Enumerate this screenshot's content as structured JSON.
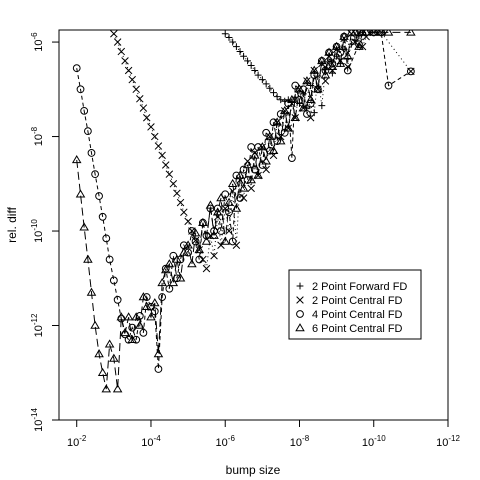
{
  "chart_data": {
    "type": "line",
    "title": "",
    "xlabel": "bump size",
    "ylabel": "rel. diff",
    "x_scale": "log",
    "y_scale": "log",
    "x_reversed": true,
    "xlim": [
      0.03,
      1e-12
    ],
    "ylim": [
      1e-14,
      1.8e-06
    ],
    "grid": false,
    "legend_position": "right-center",
    "x_ticks": [
      {
        "value": 0.01,
        "base": "10",
        "exp": "-2"
      },
      {
        "value": 0.0001,
        "base": "10",
        "exp": "-4"
      },
      {
        "value": 1e-06,
        "base": "10",
        "exp": "-6"
      },
      {
        "value": 1e-08,
        "base": "10",
        "exp": "-8"
      },
      {
        "value": 1e-10,
        "base": "10",
        "exp": "-10"
      },
      {
        "value": 1e-12,
        "base": "10",
        "exp": "-12"
      }
    ],
    "y_ticks": [
      {
        "value": 1e-06,
        "base": "10",
        "exp": "-6"
      },
      {
        "value": 1e-08,
        "base": "10",
        "exp": "-8"
      },
      {
        "value": 1e-10,
        "base": "10",
        "exp": "-10"
      },
      {
        "value": 1e-12,
        "base": "10",
        "exp": "-12"
      },
      {
        "value": 1e-14,
        "base": "10",
        "exp": "-14"
      }
    ],
    "series": [
      {
        "name": "2 Point Forward FD",
        "marker": "plus",
        "line": "dotted",
        "points": [
          [
            1e-06,
            1.5e-06
          ],
          [
            7.9e-07,
            1.25e-06
          ],
          [
            6.3e-07,
            1e-06
          ],
          [
            5e-07,
            8e-07
          ],
          [
            4e-07,
            6.3e-07
          ],
          [
            3.2e-07,
            5e-07
          ],
          [
            2.5e-07,
            4e-07
          ],
          [
            2e-07,
            3.2e-07
          ],
          [
            1.6e-07,
            2.5e-07
          ],
          [
            1.3e-07,
            2e-07
          ],
          [
            1e-07,
            1.6e-07
          ],
          [
            7.9e-08,
            1.3e-07
          ],
          [
            6.3e-08,
            1.05e-07
          ],
          [
            5e-08,
            8.5e-08
          ],
          [
            4e-08,
            7e-08
          ],
          [
            3.2e-08,
            6e-08
          ],
          [
            2.5e-08,
            5.6e-08
          ],
          [
            2e-08,
            6e-08
          ],
          [
            1.6e-08,
            5.5e-08
          ],
          [
            1.3e-08,
            6.8e-08
          ],
          [
            1e-08,
            5e-08
          ],
          [
            7.9e-09,
            8e-08
          ],
          [
            6.3e-09,
            4e-08
          ],
          [
            5e-09,
            1.2e-07
          ],
          [
            4e-09,
            3.2e-08
          ],
          [
            3.2e-09,
            1.9e-07
          ],
          [
            2.5e-09,
            4.5e-08
          ],
          [
            2e-09,
            2.6e-07
          ],
          [
            1.6e-09,
            3.8e-07
          ],
          [
            1.3e-09,
            2.2e-07
          ],
          [
            1e-09,
            5e-07
          ],
          [
            7.9e-10,
            3.5e-07
          ],
          [
            6.3e-10,
            7e-07
          ],
          [
            5e-10,
            4.5e-07
          ],
          [
            4e-10,
            9e-07
          ],
          [
            3.2e-10,
            1.1e-06
          ],
          [
            2.5e-10,
            1.35e-06
          ],
          [
            2e-10,
            1.6e-06
          ]
        ]
      },
      {
        "name": "2 Point Central FD",
        "marker": "cross",
        "line": "dotted",
        "points": [
          [
            0.001,
            1.5e-06
          ],
          [
            0.00079,
            1e-06
          ],
          [
            0.00063,
            6.3e-07
          ],
          [
            0.0005,
            4e-07
          ],
          [
            0.0004,
            2.5e-07
          ],
          [
            0.00032,
            1.6e-07
          ],
          [
            0.00025,
            1e-07
          ],
          [
            0.0002,
            6.3e-08
          ],
          [
            0.00016,
            4e-08
          ],
          [
            0.00013,
            2.5e-08
          ],
          [
            0.0001,
            1.6e-08
          ],
          [
            7.9e-05,
            1e-08
          ],
          [
            6.3e-05,
            6.3e-09
          ],
          [
            5e-05,
            4e-09
          ],
          [
            4e-05,
            2.5e-09
          ],
          [
            3.2e-05,
            1.6e-09
          ],
          [
            2.5e-05,
            1e-09
          ],
          [
            2e-05,
            6.3e-10
          ],
          [
            1.6e-05,
            4e-10
          ],
          [
            1.3e-05,
            2.5e-10
          ],
          [
            1e-05,
            1.6e-10
          ],
          [
            7.9e-06,
            1e-10
          ],
          [
            6.3e-06,
            6.3e-11
          ],
          [
            5e-06,
            4e-11
          ],
          [
            4e-06,
            2.5e-11
          ],
          [
            3.2e-06,
            1.6e-11
          ],
          [
            2.5e-06,
            8e-11
          ],
          [
            2e-06,
            3e-11
          ],
          [
            1.6e-06,
            2e-10
          ],
          [
            1.3e-06,
            5e-11
          ],
          [
            1e-06,
            3e-10
          ],
          [
            7.9e-07,
            1e-10
          ],
          [
            6.3e-07,
            7e-10
          ],
          [
            5e-07,
            5e-11
          ],
          [
            4e-07,
            1.2e-09
          ],
          [
            3.2e-07,
            5e-10
          ],
          [
            2.5e-07,
            3e-09
          ],
          [
            2e-07,
            8e-10
          ],
          [
            1.6e-07,
            4.5e-09
          ],
          [
            1.3e-07,
            1.5e-09
          ],
          [
            1e-07,
            6e-09
          ],
          [
            7.9e-08,
            2e-09
          ],
          [
            6.3e-08,
            1e-08
          ],
          [
            5e-08,
            4e-09
          ],
          [
            4e-08,
            2e-08
          ],
          [
            3.2e-08,
            1e-08
          ],
          [
            2.5e-08,
            3.5e-08
          ],
          [
            2e-08,
            1.5e-08
          ],
          [
            1.6e-08,
            5e-08
          ],
          [
            1.3e-08,
            2.5e-08
          ],
          [
            1e-08,
            1e-07
          ],
          [
            7.9e-09,
            4e-08
          ],
          [
            6.3e-09,
            1.5e-07
          ],
          [
            5e-09,
            2.5e-08
          ],
          [
            4e-09,
            2.5e-07
          ],
          [
            3.2e-09,
            1e-07
          ],
          [
            2.5e-09,
            3.5e-07
          ],
          [
            2e-09,
            1.5e-07
          ],
          [
            1.6e-09,
            5e-07
          ],
          [
            1.3e-09,
            2.5e-07
          ],
          [
            1e-09,
            7e-07
          ],
          [
            7.9e-10,
            4e-07
          ],
          [
            6.3e-10,
            1.2e-06
          ],
          [
            5e-10,
            3e-07
          ],
          [
            4e-10,
            1.5e-06
          ],
          [
            3.2e-10,
            1e-06
          ],
          [
            2.5e-10,
            1.6e-06
          ],
          [
            2e-10,
            8e-07
          ],
          [
            1.6e-10,
            1.3e-06
          ],
          [
            1e-10,
            1.6e-06
          ],
          [
            6.3e-11,
            1.6e-06
          ],
          [
            1e-11,
            2.4e-07
          ]
        ]
      },
      {
        "name": "4 Point Central FD",
        "marker": "circle",
        "line": "dashed",
        "points": [
          [
            0.01,
            2.8e-07
          ],
          [
            0.0079,
            1e-07
          ],
          [
            0.0063,
            3.5e-08
          ],
          [
            0.005,
            1.3e-08
          ],
          [
            0.004,
            4.5e-09
          ],
          [
            0.0032,
            1.6e-09
          ],
          [
            0.0025,
            5.5e-10
          ],
          [
            0.002,
            2e-10
          ],
          [
            0.0016,
            7e-11
          ],
          [
            0.0013,
            2.5e-11
          ],
          [
            0.001,
            9e-12
          ],
          [
            0.00079,
            3.5e-12
          ],
          [
            0.00063,
            1.4e-12
          ],
          [
            0.0005,
            6.5e-13
          ],
          [
            0.0004,
            5e-13
          ],
          [
            0.00032,
            9e-13
          ],
          [
            0.00025,
            5e-13
          ],
          [
            0.0002,
            1.6e-12
          ],
          [
            0.00016,
            7e-13
          ],
          [
            0.00013,
            4e-12
          ],
          [
            0.0001,
            2.5e-12
          ],
          [
            7.9e-05,
            2e-12
          ],
          [
            6.3e-05,
            1.2e-13
          ],
          [
            5e-05,
            4e-12
          ],
          [
            4e-05,
            1.6e-11
          ],
          [
            3.2e-05,
            6e-12
          ],
          [
            2.5e-05,
            3e-11
          ],
          [
            2e-05,
            1e-11
          ],
          [
            1.6e-05,
            2.5e-11
          ],
          [
            1.3e-05,
            5e-11
          ],
          [
            1e-05,
            3.5e-11
          ],
          [
            7.9e-06,
            1e-10
          ],
          [
            6.3e-06,
            6e-11
          ],
          [
            5e-06,
            2.5e-11
          ],
          [
            4e-06,
            1.5e-10
          ],
          [
            3.2e-06,
            8e-11
          ],
          [
            2.5e-06,
            3e-10
          ],
          [
            2e-06,
            1e-10
          ],
          [
            1.6e-06,
            3e-10
          ],
          [
            1.3e-06,
            1e-10
          ],
          [
            1e-06,
            6e-10
          ],
          [
            7.9e-07,
            2.5e-10
          ],
          [
            6.3e-07,
            6e-11
          ],
          [
            5e-07,
            1.5e-09
          ],
          [
            4e-07,
            5e-10
          ],
          [
            3.2e-07,
            2e-09
          ],
          [
            2.5e-07,
            1.2e-09
          ],
          [
            2e-07,
            6e-09
          ],
          [
            1.6e-07,
            2e-09
          ],
          [
            1.3e-07,
            6e-09
          ],
          [
            1e-07,
            2.5e-09
          ],
          [
            7.9e-08,
            1.2e-08
          ],
          [
            6.3e-08,
            5e-09
          ],
          [
            5e-08,
            2e-08
          ],
          [
            4e-08,
            8e-09
          ],
          [
            3.2e-08,
            3e-08
          ],
          [
            2.5e-08,
            1.2e-08
          ],
          [
            2e-08,
            5e-08
          ],
          [
            1.6e-08,
            3.5e-09
          ],
          [
            1.3e-08,
            1.2e-07
          ],
          [
            1e-08,
            6e-08
          ],
          [
            7.9e-09,
            1e-07
          ],
          [
            6.3e-09,
            3e-08
          ],
          [
            5e-09,
            5e-08
          ],
          [
            4e-09,
            2e-07
          ],
          [
            3.2e-09,
            1e-07
          ],
          [
            2.5e-09,
            4e-07
          ],
          [
            2e-09,
            2.5e-07
          ],
          [
            1.6e-09,
            6e-07
          ],
          [
            1.3e-09,
            3.5e-07
          ],
          [
            1e-09,
            8e-07
          ],
          [
            7.9e-10,
            6e-07
          ],
          [
            6.3e-10,
            1.3e-06
          ],
          [
            5e-10,
            2.5e-07
          ],
          [
            2.5e-10,
            9e-07
          ],
          [
            1.6e-10,
            1.6e-06
          ],
          [
            1e-10,
            1.6e-06
          ],
          [
            6.3e-11,
            1.6e-06
          ],
          [
            4e-11,
            1.2e-07
          ],
          [
            1e-11,
            2.4e-07
          ]
        ]
      },
      {
        "name": "6 Point Central FD",
        "marker": "triangle",
        "line": "longdash",
        "points": [
          [
            0.01,
            3.2e-09
          ],
          [
            0.0079,
            6e-10
          ],
          [
            0.0063,
            1.2e-10
          ],
          [
            0.005,
            2.5e-11
          ],
          [
            0.004,
            5e-12
          ],
          [
            0.0032,
            1e-12
          ],
          [
            0.0025,
            2.5e-13
          ],
          [
            0.002,
            1e-13
          ],
          [
            0.0016,
            4.5e-14
          ],
          [
            0.0013,
            4e-13
          ],
          [
            0.001,
            2e-13
          ],
          [
            0.00079,
            4.5e-14
          ],
          [
            0.00063,
            1.5e-12
          ],
          [
            0.0005,
            7e-13
          ],
          [
            0.0004,
            1.5e-12
          ],
          [
            0.00032,
            5e-13
          ],
          [
            0.00025,
            1.5e-12
          ],
          [
            0.0002,
            1e-12
          ],
          [
            0.00016,
            4e-12
          ],
          [
            0.00013,
            2.5e-12
          ],
          [
            0.0001,
            1.5e-12
          ],
          [
            7.9e-05,
            3e-12
          ],
          [
            6.3e-05,
            2.5e-13
          ],
          [
            5e-05,
            8e-12
          ],
          [
            4e-05,
            1.5e-11
          ],
          [
            3.2e-05,
            2e-11
          ],
          [
            2.5e-05,
            8e-12
          ],
          [
            2e-05,
            2.5e-11
          ],
          [
            1.6e-05,
            1e-11
          ],
          [
            1.3e-05,
            3.5e-11
          ],
          [
            1e-05,
            5e-11
          ],
          [
            7.9e-06,
            2e-11
          ],
          [
            6.3e-06,
            9e-11
          ],
          [
            5e-06,
            4e-11
          ],
          [
            4e-06,
            1.5e-10
          ],
          [
            3.2e-06,
            6e-11
          ],
          [
            2.5e-06,
            3.5e-10
          ],
          [
            2e-06,
            8e-11
          ],
          [
            1.6e-06,
            2.5e-10
          ],
          [
            1.3e-06,
            5e-10
          ],
          [
            1e-06,
            6e-11
          ],
          [
            7.9e-07,
            4e-10
          ],
          [
            6.3e-07,
            1e-09
          ],
          [
            5e-07,
            3e-10
          ],
          [
            4e-07,
            1.5e-09
          ],
          [
            3.2e-07,
            8e-10
          ],
          [
            2.5e-07,
            2.5e-09
          ],
          [
            2e-07,
            1.2e-09
          ],
          [
            1.6e-07,
            4e-09
          ],
          [
            1.3e-07,
            1.5e-09
          ],
          [
            1e-07,
            6e-09
          ],
          [
            7.9e-08,
            3e-09
          ],
          [
            6.3e-08,
            1e-08
          ],
          [
            5e-08,
            5e-09
          ],
          [
            4e-08,
            2e-08
          ],
          [
            3.2e-08,
            8e-09
          ],
          [
            2.5e-08,
            3.5e-08
          ],
          [
            2e-08,
            1.5e-08
          ],
          [
            1.6e-08,
            6e-08
          ],
          [
            1.3e-08,
            2.5e-08
          ],
          [
            1e-08,
            1e-07
          ],
          [
            7.9e-09,
            4e-08
          ],
          [
            6.3e-09,
            1.5e-07
          ],
          [
            5e-09,
            6e-08
          ],
          [
            4e-09,
            2.5e-07
          ],
          [
            3.2e-09,
            1e-07
          ],
          [
            2.5e-09,
            4e-07
          ],
          [
            2e-09,
            2e-07
          ],
          [
            1.6e-09,
            6e-07
          ],
          [
            1.3e-09,
            3e-07
          ],
          [
            1e-09,
            8e-07
          ],
          [
            7.9e-10,
            3.5e-07
          ],
          [
            6.3e-10,
            1.3e-06
          ],
          [
            5e-10,
            5e-07
          ],
          [
            4e-10,
            1.6e-06
          ],
          [
            3.2e-10,
            1.6e-06
          ],
          [
            2.5e-10,
            8e-07
          ],
          [
            2e-10,
            1.6e-06
          ],
          [
            1.6e-10,
            1.6e-06
          ],
          [
            1e-10,
            1.6e-06
          ],
          [
            6.3e-11,
            1.6e-06
          ],
          [
            4e-11,
            1.6e-06
          ],
          [
            1e-11,
            1.6e-06
          ]
        ]
      }
    ]
  }
}
